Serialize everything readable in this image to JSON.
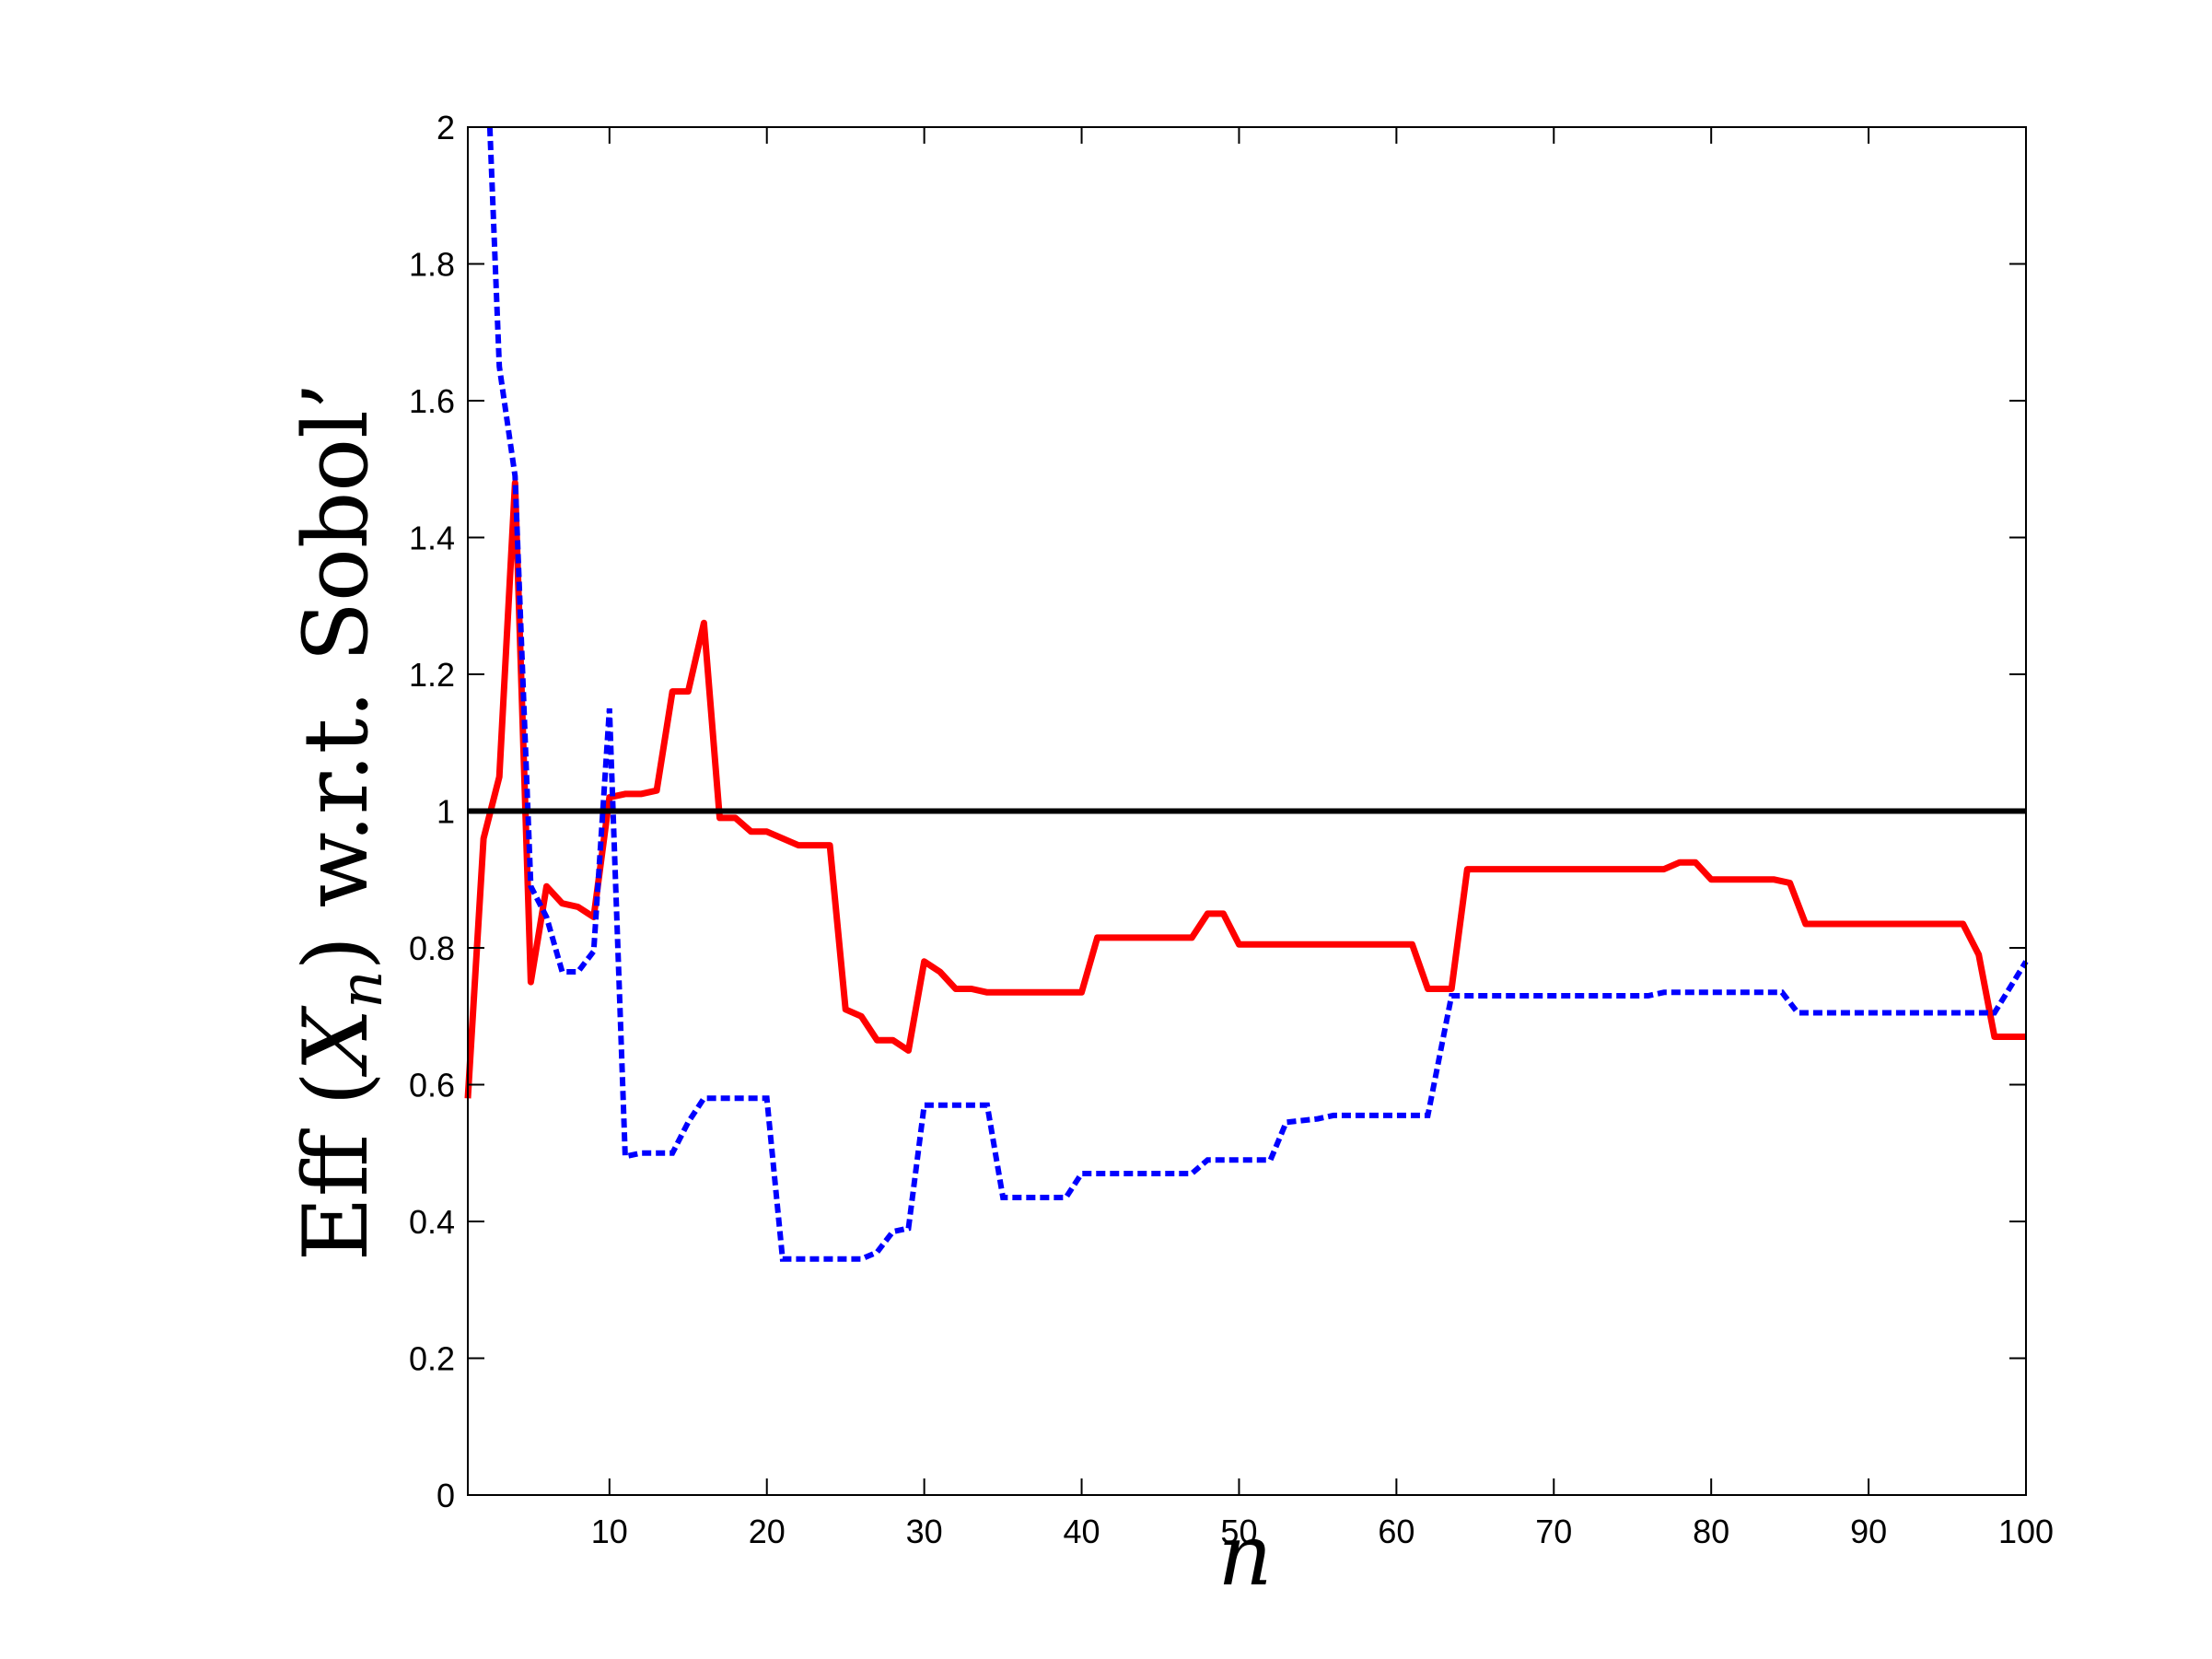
{
  "chart_data": {
    "type": "line",
    "xlabel": "n",
    "ylabel_parts": {
      "pre": "Eff",
      "var": "X",
      "sub": "n",
      "post": "w.r.t. Sobol’"
    },
    "xlim": [
      1,
      100
    ],
    "ylim": [
      0,
      2
    ],
    "xticks": [
      10,
      20,
      30,
      40,
      50,
      60,
      70,
      80,
      90,
      100
    ],
    "yticks": [
      0,
      0.2,
      0.4,
      0.6,
      0.8,
      1,
      1.2,
      1.4,
      1.6,
      1.8,
      2
    ],
    "ytick_labels": [
      "0",
      "0.2",
      "0.4",
      "0.6",
      "0.8",
      "1",
      "1.2",
      "1.4",
      "1.6",
      "1.8",
      "2"
    ],
    "grid": false,
    "reference_line": {
      "y": 1,
      "color": "#000000"
    },
    "series": [
      {
        "color": "#ff0000",
        "style": "solid",
        "points": [
          [
            1,
            0.58
          ],
          [
            2,
            0.96
          ],
          [
            3,
            1.05
          ],
          [
            4,
            1.48
          ],
          [
            5,
            0.75
          ],
          [
            6,
            0.89
          ],
          [
            7,
            0.865
          ],
          [
            8,
            0.86
          ],
          [
            9,
            0.845
          ],
          [
            10,
            1.02
          ],
          [
            11,
            1.025
          ],
          [
            12,
            1.025
          ],
          [
            13,
            1.03
          ],
          [
            14,
            1.175
          ],
          [
            15,
            1.175
          ],
          [
            16,
            1.275
          ],
          [
            17,
            0.99
          ],
          [
            18,
            0.99
          ],
          [
            19,
            0.97
          ],
          [
            20,
            0.97
          ],
          [
            21,
            0.96
          ],
          [
            22,
            0.95
          ],
          [
            24,
            0.95
          ],
          [
            25,
            0.71
          ],
          [
            26,
            0.7
          ],
          [
            27,
            0.665
          ],
          [
            28,
            0.665
          ],
          [
            29,
            0.65
          ],
          [
            30,
            0.78
          ],
          [
            31,
            0.765
          ],
          [
            32,
            0.74
          ],
          [
            33,
            0.74
          ],
          [
            34,
            0.735
          ],
          [
            40,
            0.735
          ],
          [
            41,
            0.815
          ],
          [
            47,
            0.815
          ],
          [
            48,
            0.85
          ],
          [
            49,
            0.85
          ],
          [
            50,
            0.805
          ],
          [
            61,
            0.805
          ],
          [
            62,
            0.74
          ],
          [
            63.5,
            0.74
          ],
          [
            64.5,
            0.915
          ],
          [
            77,
            0.915
          ],
          [
            78,
            0.925
          ],
          [
            79,
            0.925
          ],
          [
            80,
            0.9
          ],
          [
            84,
            0.9
          ],
          [
            85,
            0.895
          ],
          [
            86,
            0.835
          ],
          [
            96,
            0.835
          ],
          [
            97,
            0.79
          ],
          [
            98,
            0.67
          ],
          [
            100,
            0.67
          ]
        ]
      },
      {
        "color": "#0000ff",
        "style": "dashed",
        "points": [
          [
            2.4,
            2.0
          ],
          [
            3,
            1.65
          ],
          [
            4,
            1.49
          ],
          [
            5,
            0.89
          ],
          [
            6,
            0.845
          ],
          [
            7,
            0.765
          ],
          [
            8,
            0.765
          ],
          [
            9,
            0.795
          ],
          [
            10,
            1.15
          ],
          [
            11,
            0.495
          ],
          [
            12,
            0.5
          ],
          [
            14,
            0.5
          ],
          [
            15,
            0.545
          ],
          [
            16,
            0.58
          ],
          [
            17,
            0.58
          ],
          [
            20,
            0.58
          ],
          [
            21,
            0.345
          ],
          [
            26,
            0.345
          ],
          [
            27,
            0.355
          ],
          [
            28,
            0.385
          ],
          [
            29,
            0.39
          ],
          [
            30,
            0.57
          ],
          [
            34,
            0.57
          ],
          [
            35,
            0.435
          ],
          [
            39,
            0.435
          ],
          [
            40,
            0.47
          ],
          [
            47,
            0.47
          ],
          [
            48,
            0.49
          ],
          [
            52,
            0.49
          ],
          [
            53,
            0.545
          ],
          [
            55,
            0.55
          ],
          [
            56,
            0.555
          ],
          [
            62,
            0.555
          ],
          [
            63.5,
            0.73
          ],
          [
            76,
            0.73
          ],
          [
            77,
            0.735
          ],
          [
            84.5,
            0.735
          ],
          [
            85.5,
            0.705
          ],
          [
            98,
            0.705
          ],
          [
            100,
            0.78
          ]
        ]
      }
    ]
  }
}
